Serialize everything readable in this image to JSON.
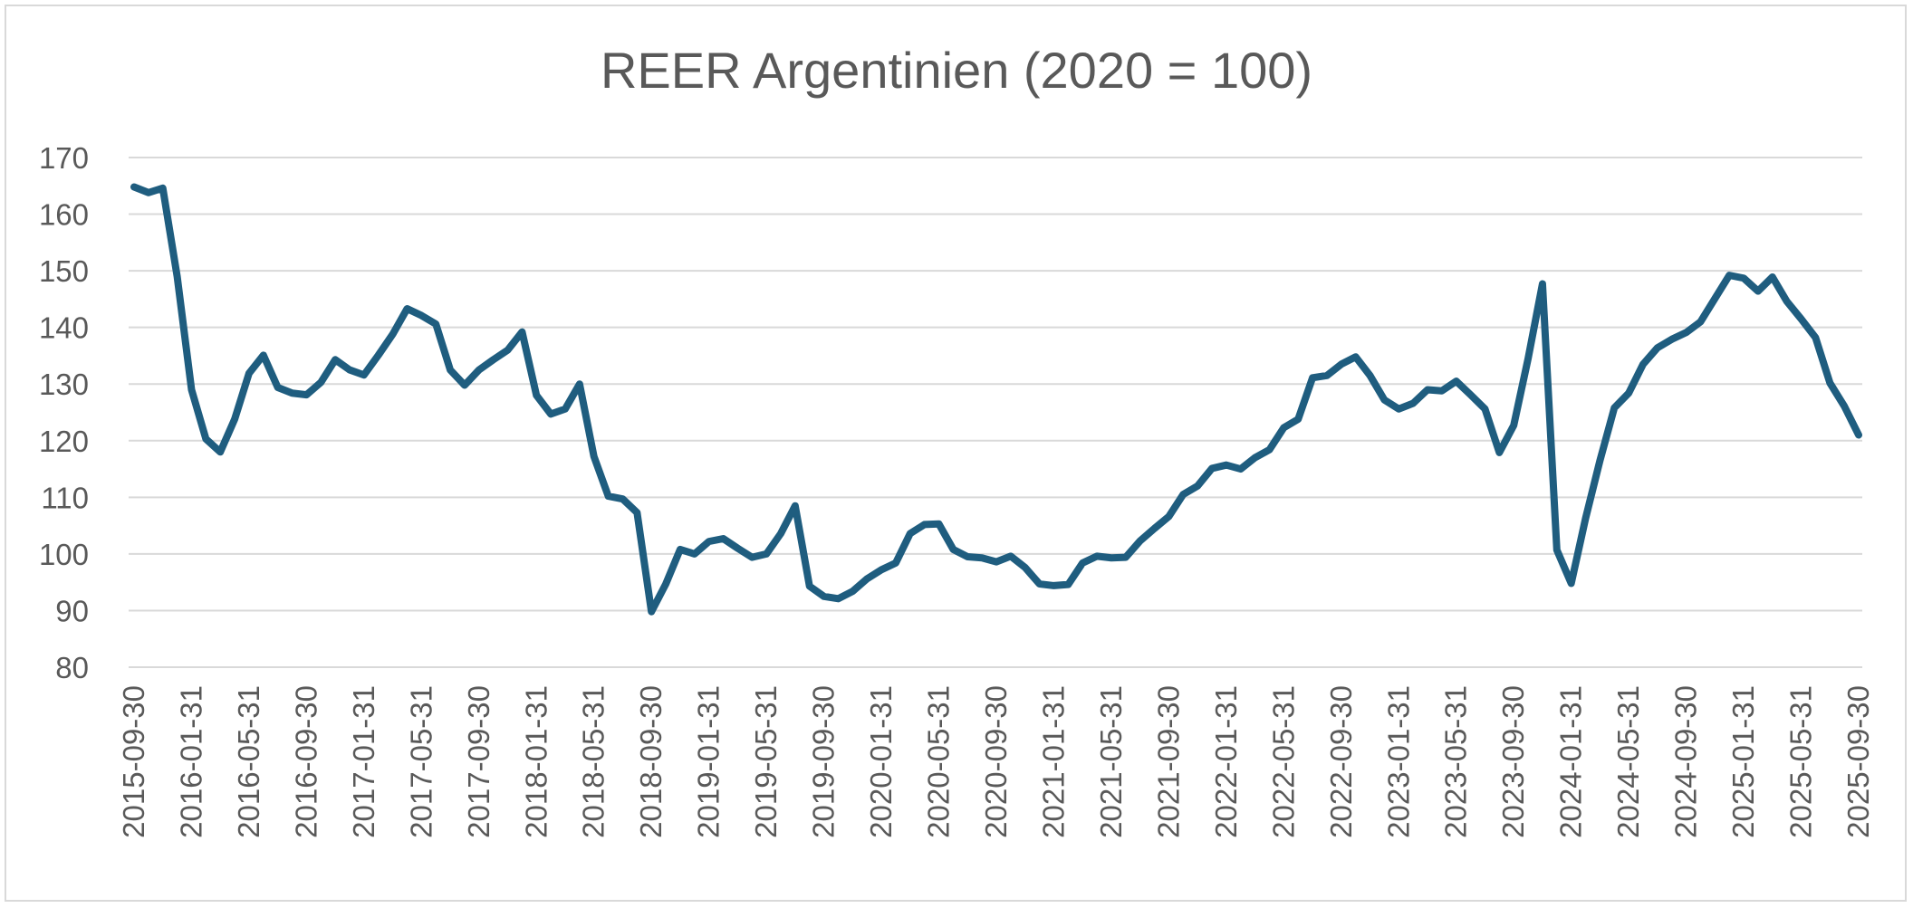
{
  "chart_data": {
    "type": "line",
    "title": "REER Argentinien (2020 = 100)",
    "xlabel": "",
    "ylabel": "",
    "ylim": [
      80,
      170
    ],
    "ytick_step": 10,
    "yticks": [
      "80",
      "90",
      "100",
      "110",
      "120",
      "130",
      "140",
      "150",
      "160",
      "170"
    ],
    "grid": true,
    "legend": "none",
    "line_color": "#1f5d7f",
    "x_tick_labels": [
      "2015-09-30",
      "2016-01-31",
      "2016-05-31",
      "2016-09-30",
      "2017-01-31",
      "2017-05-31",
      "2017-09-30",
      "2018-01-31",
      "2018-05-31",
      "2018-09-30",
      "2019-01-31",
      "2019-05-31",
      "2019-09-30",
      "2020-01-31",
      "2020-05-31",
      "2020-09-30",
      "2021-01-31",
      "2021-05-31",
      "2021-09-30",
      "2022-01-31",
      "2022-05-31",
      "2022-09-30",
      "2023-01-31",
      "2023-05-31",
      "2023-09-30",
      "2024-01-31",
      "2024-05-31",
      "2024-09-30",
      "2025-01-31",
      "2025-05-31",
      "2025-09-30"
    ],
    "series": [
      {
        "values": [
          164.8,
          163.8,
          164.6,
          149.0,
          129.0,
          120.3,
          118.0,
          123.8,
          131.9,
          135.1,
          129.4,
          128.4,
          128.1,
          130.3,
          134.3,
          132.5,
          131.6,
          135.1,
          138.8,
          143.3,
          142.1,
          140.6,
          132.5,
          129.8,
          132.5,
          134.3,
          136.0,
          139.2,
          128.0,
          124.7,
          125.6,
          130.0,
          117.2,
          110.2,
          109.7,
          107.3,
          89.8,
          94.7,
          100.8,
          100.0,
          102.2,
          102.7,
          101.0,
          99.4,
          100.0,
          103.6,
          108.5,
          94.3,
          92.5,
          92.1,
          93.4,
          95.6,
          97.2,
          98.4,
          103.6,
          105.2,
          105.3,
          100.8,
          99.5,
          99.3,
          98.6,
          99.6,
          97.6,
          94.7,
          94.4,
          94.6,
          98.4,
          99.6,
          99.3,
          99.4,
          102.3,
          104.5,
          106.6,
          110.5,
          112.0,
          115.1,
          115.7,
          115.0,
          117.0,
          118.4,
          122.3,
          123.8,
          131.1,
          131.5,
          133.5,
          134.8,
          131.5,
          127.2,
          125.6,
          126.6,
          129.0,
          128.8,
          130.5,
          128.1,
          125.6,
          117.9,
          122.7,
          134.5,
          147.7,
          100.7,
          94.8,
          106.3,
          116.5,
          125.8,
          128.4,
          133.5,
          136.4,
          137.9,
          139.1,
          141.0,
          145.1,
          149.2,
          148.7,
          146.4,
          148.9,
          144.6,
          141.5,
          138.2,
          130.2,
          126.1,
          121.0
        ]
      }
    ]
  }
}
